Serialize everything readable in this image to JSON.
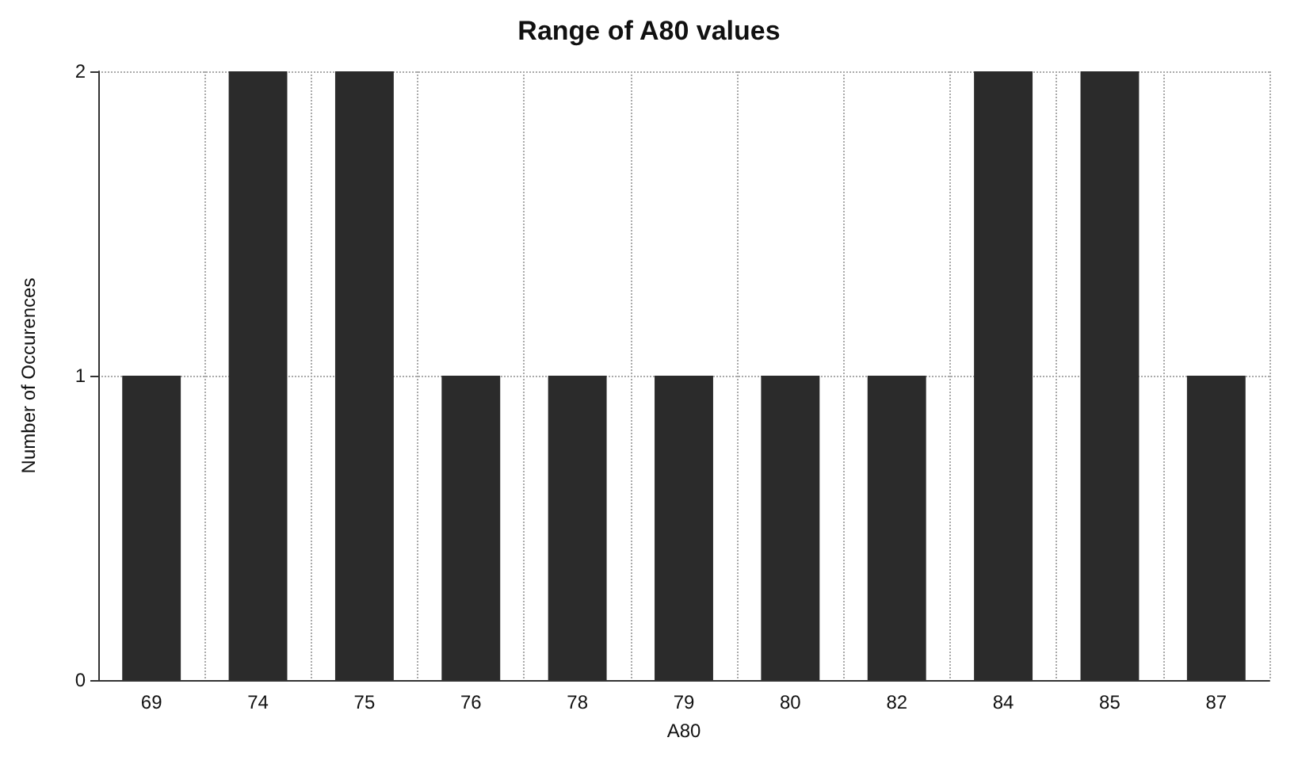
{
  "chart_data": {
    "type": "bar",
    "title": "Range of A80 values",
    "xlabel": "A80",
    "ylabel": "Number of Occurences",
    "categories": [
      "69",
      "74",
      "75",
      "76",
      "78",
      "79",
      "80",
      "82",
      "84",
      "85",
      "87"
    ],
    "values": [
      1,
      2,
      2,
      1,
      1,
      1,
      1,
      1,
      2,
      2,
      1
    ],
    "color": "#2b2b2b",
    "ylim": [
      0,
      2
    ],
    "yticks": [
      0,
      1,
      2
    ],
    "grid": true
  }
}
